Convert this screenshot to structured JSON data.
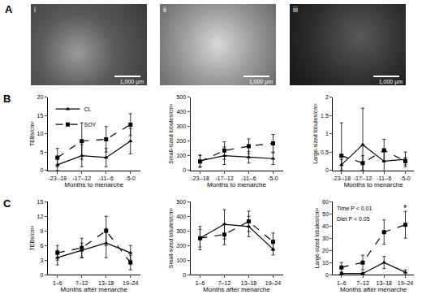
{
  "panel_labels": [
    "A",
    "B",
    "C"
  ],
  "images": [
    {
      "label": "i",
      "scale_bar": "1,000 μm"
    },
    {
      "label": "ii",
      "scale_bar": "1,000 μm"
    },
    {
      "label": "iii",
      "scale_bar": "1,000 μm"
    }
  ],
  "chart_data": [
    {
      "type": "line",
      "x_label": "Months to menarche",
      "y_label": "TEBs/cm²",
      "categories": [
        "-23--18",
        "-17--12",
        "-11--6",
        "-5-0"
      ],
      "ylim": [
        0,
        20
      ],
      "yticks": [
        0,
        5,
        10,
        15,
        20
      ],
      "legend": "upper left",
      "series": [
        {
          "name": "CL",
          "color": "#000000",
          "marker": "triangle",
          "line_style": "solid",
          "values": [
            1.5,
            4,
            3.5,
            8
          ],
          "error": [
            1.5,
            3,
            2.5,
            3.5
          ]
        },
        {
          "name": "SOY",
          "color": "#000000",
          "marker": "square",
          "line_style": "dashed",
          "values": [
            3.5,
            8,
            8.5,
            12.5
          ],
          "error": [
            2.5,
            5,
            3.5,
            3
          ]
        }
      ]
    },
    {
      "type": "line",
      "x_label": "Months to menarche",
      "y_label": "Small-sized lobules/cm²",
      "categories": [
        "-23--18",
        "-17--12",
        "-11--6",
        "-5-0"
      ],
      "ylim": [
        0,
        500
      ],
      "yticks": [
        0,
        100,
        200,
        300,
        400,
        500
      ],
      "series": [
        {
          "name": "CL",
          "color": "#000000",
          "marker": "triangle",
          "line_style": "solid",
          "values": [
            65,
            100,
            90,
            80
          ],
          "error": [
            40,
            60,
            40,
            40
          ]
        },
        {
          "name": "SOY",
          "color": "#000000",
          "marker": "square",
          "line_style": "dashed",
          "values": [
            60,
            135,
            165,
            185
          ],
          "error": [
            40,
            60,
            50,
            60
          ]
        }
      ]
    },
    {
      "type": "line",
      "x_label": "Months to menarche",
      "y_label": "Large-sized lobules/cm²",
      "categories": [
        "-23--18",
        "-17--12",
        "-11--6",
        "-5-0"
      ],
      "ylim": [
        0,
        2
      ],
      "yticks": [
        0,
        0.5,
        1,
        1.5,
        2
      ],
      "series": [
        {
          "name": "CL",
          "color": "#000000",
          "marker": "triangle",
          "line_style": "solid",
          "values": [
            0.15,
            0.7,
            0.25,
            0.3
          ],
          "error": [
            0.15,
            1.0,
            0.3,
            0.2
          ]
        },
        {
          "name": "SOY",
          "color": "#000000",
          "marker": "square",
          "line_style": "dashed",
          "values": [
            0.4,
            0.2,
            0.55,
            0.25
          ],
          "error": [
            0.9,
            0.2,
            0.3,
            0.1
          ]
        }
      ]
    },
    {
      "type": "line",
      "x_label": "Months after menarche",
      "y_label": "TEBs/cm²",
      "categories": [
        "1–6",
        "7–12",
        "13–18",
        "19–24"
      ],
      "ylim": [
        0,
        15
      ],
      "yticks": [
        0,
        3,
        6,
        9,
        12,
        15
      ],
      "series": [
        {
          "name": "CL",
          "color": "#000000",
          "marker": "triangle",
          "line_style": "solid",
          "values": [
            3.5,
            5,
            6.5,
            4.5
          ],
          "error": [
            1.5,
            1.5,
            3,
            1.5
          ]
        },
        {
          "name": "SOY",
          "color": "#000000",
          "marker": "square",
          "line_style": "dashed",
          "values": [
            4.5,
            5.5,
            9,
            2.5
          ],
          "error": [
            1.5,
            2,
            3,
            1.5
          ]
        }
      ]
    },
    {
      "type": "line",
      "x_label": "Months after menarche",
      "y_label": "Small-sized lobules/cm²",
      "categories": [
        "1–6",
        "7–12",
        "13–18",
        "19–24"
      ],
      "ylim": [
        0,
        500
      ],
      "yticks": [
        0,
        100,
        200,
        300,
        400,
        500
      ],
      "series": [
        {
          "name": "CL",
          "color": "#000000",
          "marker": "triangle",
          "line_style": "solid",
          "values": [
            250,
            345,
            330,
            175
          ],
          "error": [
            80,
            100,
            70,
            40
          ]
        },
        {
          "name": "SOY",
          "color": "#000000",
          "marker": "square",
          "line_style": "dashed",
          "values": [
            250,
            275,
            365,
            225
          ],
          "error": [
            60,
            70,
            70,
            60
          ]
        }
      ]
    },
    {
      "type": "line",
      "x_label": "Months after menarche",
      "y_label": "Large-sized lobules/cm²",
      "categories": [
        "1–6",
        "7–12",
        "13–18",
        "19–24"
      ],
      "ylim": [
        0,
        60
      ],
      "yticks": [
        0,
        10,
        20,
        30,
        40,
        50,
        60
      ],
      "annotations": [
        {
          "text": "Time P < 0.01"
        },
        {
          "text": "Diet P < 0.05"
        },
        {
          "text": "*",
          "category": "19–24",
          "y": 55
        }
      ],
      "series": [
        {
          "name": "CL",
          "color": "#000000",
          "marker": "triangle",
          "line_style": "solid",
          "values": [
            1,
            1,
            10,
            2
          ],
          "error": [
            1,
            1,
            5,
            2
          ]
        },
        {
          "name": "SOY",
          "color": "#000000",
          "marker": "square",
          "line_style": "dashed",
          "values": [
            6,
            10,
            35,
            41
          ],
          "error": [
            4,
            6,
            10,
            11
          ]
        }
      ]
    }
  ]
}
